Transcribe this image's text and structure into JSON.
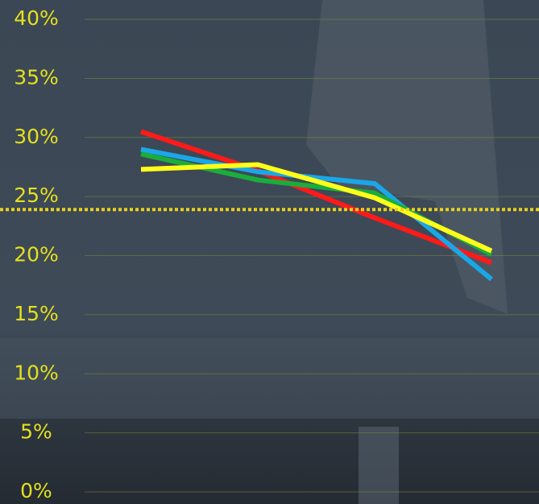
{
  "chart_data": {
    "type": "line",
    "categories": [
      null,
      null,
      null,
      null
    ],
    "series": [
      {
        "color": "#ff1a1a",
        "values": [
          30.5,
          27.2,
          23.2,
          19.4
        ]
      },
      {
        "color": "#1aa7e8",
        "values": [
          29.0,
          27.1,
          26.1,
          18.0
        ]
      },
      {
        "color": "#1aad3c",
        "values": [
          28.6,
          26.4,
          25.3,
          20.1
        ]
      },
      {
        "color": "#ffff1a",
        "values": [
          27.3,
          27.7,
          24.9,
          20.4
        ]
      }
    ],
    "ylim": [
      0,
      40
    ],
    "yticks": [
      {
        "value": 0,
        "label": "0%"
      },
      {
        "value": 5,
        "label": "5%"
      },
      {
        "value": 10,
        "label": "10%"
      },
      {
        "value": 15,
        "label": "15%"
      },
      {
        "value": 20,
        "label": "20%"
      },
      {
        "value": 25,
        "label": "25%"
      },
      {
        "value": 30,
        "label": "30%"
      },
      {
        "value": 35,
        "label": "35%"
      },
      {
        "value": 40,
        "label": "40%"
      }
    ],
    "grid": true,
    "reference_line": {
      "value": 23.9,
      "color": "#e8d21a"
    }
  }
}
